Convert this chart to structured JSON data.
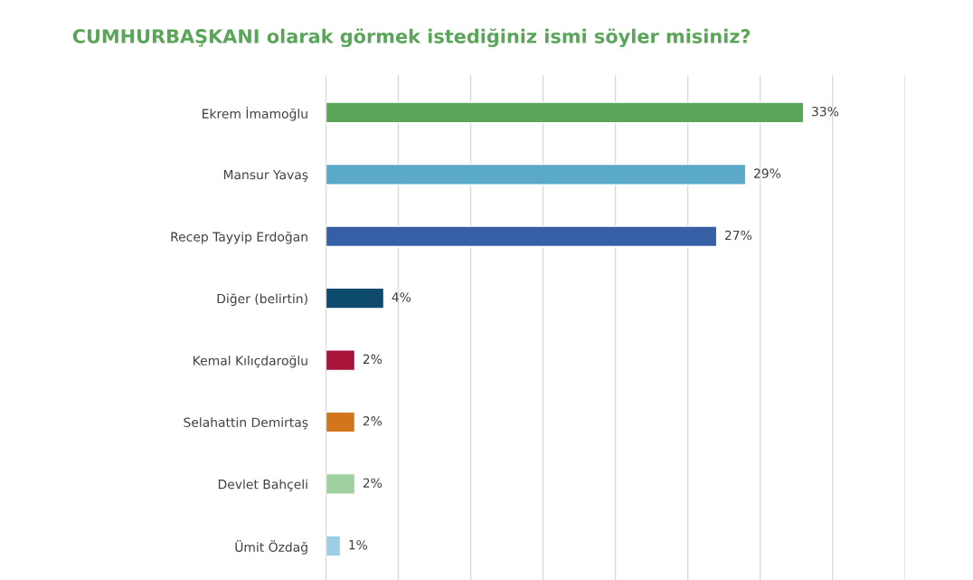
{
  "chart_data": {
    "type": "bar",
    "orientation": "horizontal",
    "title": "CUMHURBAŞKANI olarak görmek istediğiniz ismi söyler misiniz?",
    "categories": [
      "Ekrem İmamoğlu",
      "Mansur Yavaş",
      "Recep Tayyip Erdoğan",
      "Diğer (belirtin)",
      "Kemal Kılıçdaroğlu",
      "Selahattin Demirtaş",
      "Devlet Bahçeli",
      "Ümit Özdağ"
    ],
    "values": [
      33,
      29,
      27,
      4,
      2,
      2,
      2,
      1
    ],
    "colors": [
      "#5aa55a",
      "#5aa9c8",
      "#365fa5",
      "#0e4a6e",
      "#a8133a",
      "#d2761d",
      "#9fd09f",
      "#9ccfe6"
    ],
    "value_labels": [
      "33%",
      "29%",
      "27%",
      "4%",
      "2%",
      "2%",
      "2%",
      "1%"
    ],
    "xlim": [
      0,
      40
    ],
    "xticks": [
      {
        "value": 0,
        "label": null
      },
      {
        "value": 5,
        "label": null
      },
      {
        "value": 10,
        "label": null
      },
      {
        "value": 15,
        "label": null
      },
      {
        "value": 20,
        "label": null
      },
      {
        "value": 25,
        "label": null
      },
      {
        "value": 30,
        "label": null
      },
      {
        "value": 35,
        "label": null
      },
      {
        "value": 40,
        "label": null
      }
    ],
    "tick_labels": "y",
    "grid": "x",
    "legend": false
  }
}
